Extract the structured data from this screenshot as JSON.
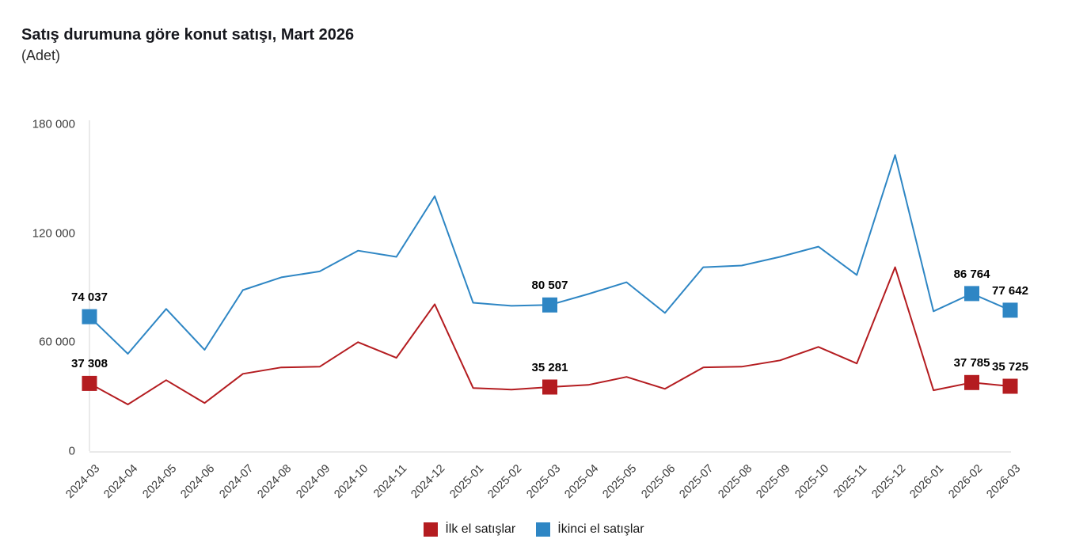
{
  "title": "Satış durumuna göre konut satışı, Mart 2026",
  "subtitle": "(Adet)",
  "chart_data": {
    "type": "line",
    "title": "Satış durumuna göre konut satışı, Mart 2026",
    "ylabel": "Adet",
    "ylim": [
      0,
      180000
    ],
    "yticks": [
      0,
      60000,
      120000,
      180000
    ],
    "grid": false,
    "legend_position": "bottom",
    "marker_shape": "square",
    "x": [
      "2024-03",
      "2024-04",
      "2024-05",
      "2024-06",
      "2024-07",
      "2024-08",
      "2024-09",
      "2024-10",
      "2024-11",
      "2024-12",
      "2025-01",
      "2025-02",
      "2025-03",
      "2025-04",
      "2025-05",
      "2025-06",
      "2025-07",
      "2025-08",
      "2025-09",
      "2025-10",
      "2025-11",
      "2025-12",
      "2026-01",
      "2026-02",
      "2026-03"
    ],
    "series": [
      {
        "name": "İlk el satışlar",
        "color": "#b41c20",
        "values": [
          37308,
          25700,
          39100,
          26500,
          42600,
          46100,
          46500,
          60000,
          51400,
          80900,
          34800,
          33900,
          35281,
          36500,
          40900,
          34300,
          46100,
          46500,
          50000,
          57400,
          48300,
          101300,
          33500,
          37785,
          35725
        ],
        "labeled_points": [
          {
            "x": "2024-03",
            "value": 37308,
            "label": "37 308"
          },
          {
            "x": "2025-03",
            "value": 35281,
            "label": "35 281"
          },
          {
            "x": "2026-02",
            "value": 37785,
            "label": "37 785"
          },
          {
            "x": "2026-03",
            "value": 35725,
            "label": "35 725"
          }
        ]
      },
      {
        "name": "İkinci el satışlar",
        "color": "#2e86c4",
        "values": [
          74037,
          53600,
          78300,
          55800,
          88700,
          95700,
          99000,
          110400,
          107000,
          140400,
          81700,
          80000,
          80507,
          86500,
          93000,
          76100,
          101300,
          102200,
          107000,
          112600,
          97000,
          163000,
          77000,
          86764,
          77642
        ],
        "labeled_points": [
          {
            "x": "2024-03",
            "value": 74037,
            "label": "74 037"
          },
          {
            "x": "2025-03",
            "value": 80507,
            "label": "80 507"
          },
          {
            "x": "2026-02",
            "value": 86764,
            "label": "86 764"
          },
          {
            "x": "2026-03",
            "value": 77642,
            "label": "77 642"
          }
        ]
      }
    ],
    "axis_color": "#e2e2e2"
  }
}
